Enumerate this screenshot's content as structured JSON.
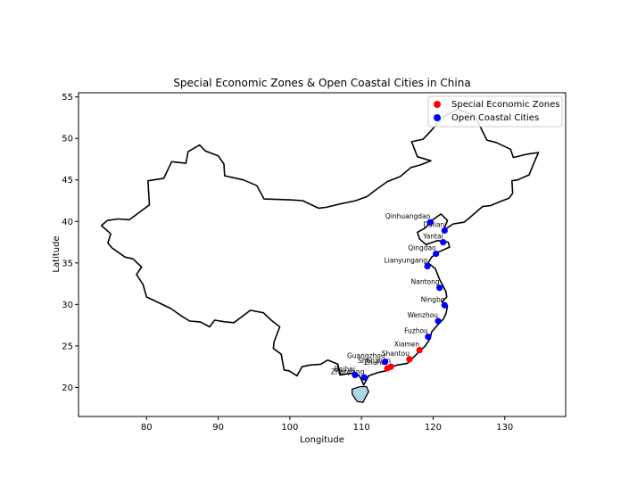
{
  "chart_data": {
    "type": "scatter",
    "title": "Special Economic Zones & Open Coastal Cities in China",
    "xlabel": "Longitude",
    "ylabel": "Latitude",
    "xlim": [
      70.5,
      138.5
    ],
    "ylim": [
      16.5,
      55.5
    ],
    "xticks": [
      80,
      90,
      100,
      110,
      120,
      130
    ],
    "yticks": [
      20,
      25,
      30,
      35,
      40,
      45,
      50,
      55
    ],
    "grid": false,
    "legend_position": "top-right",
    "colors": {
      "sez": "#ff0000",
      "coastal": "#0000ff",
      "hainan_fill": "#add8e6",
      "outline": "#000000"
    },
    "series": [
      {
        "name": "Special Economic Zones",
        "color": "#ff0000",
        "points": [
          {
            "label": "Shenzhen",
            "x": 114.1,
            "y": 22.5
          },
          {
            "label": "Zhuhai",
            "x": 113.6,
            "y": 22.3
          },
          {
            "label": "Shantou",
            "x": 116.7,
            "y": 23.4
          },
          {
            "label": "Xiamen",
            "x": 118.1,
            "y": 24.5
          }
        ]
      },
      {
        "name": "Open Coastal Cities",
        "color": "#0000ff",
        "points": [
          {
            "label": "Qinhuangdao",
            "x": 119.6,
            "y": 39.9
          },
          {
            "label": "Dalian",
            "x": 121.6,
            "y": 38.9
          },
          {
            "label": "Yantai",
            "x": 121.4,
            "y": 37.5
          },
          {
            "label": "Qingdao",
            "x": 120.4,
            "y": 36.1
          },
          {
            "label": "Lianyungang",
            "x": 119.2,
            "y": 34.6
          },
          {
            "label": "Nantong",
            "x": 120.9,
            "y": 32.0
          },
          {
            "label": "Ningbo",
            "x": 121.6,
            "y": 29.9
          },
          {
            "label": "Wenzhou",
            "x": 120.7,
            "y": 28.0
          },
          {
            "label": "Fuzhou",
            "x": 119.3,
            "y": 26.1
          },
          {
            "label": "Guangzhou",
            "x": 113.3,
            "y": 23.1
          },
          {
            "label": "Zhanjiang",
            "x": 110.4,
            "y": 21.2
          },
          {
            "label": "Beihai",
            "x": 109.1,
            "y": 21.5
          }
        ]
      }
    ]
  }
}
